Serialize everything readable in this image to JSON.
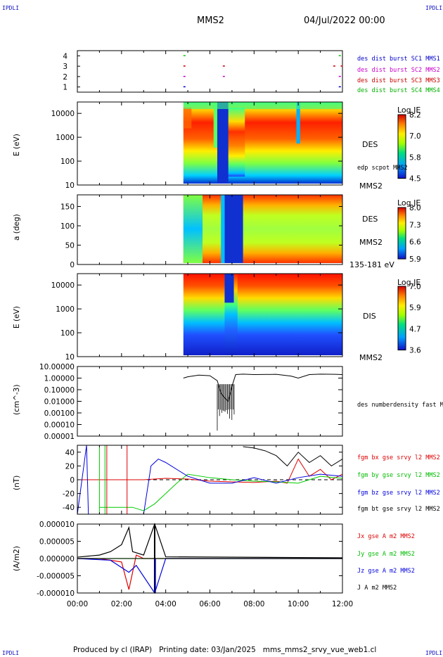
{
  "header": {
    "corner_tl": "IPDLI",
    "corner_tr": "IPDLI",
    "corner_bl": "IPDLI",
    "corner_br": "IPDLI",
    "spacecraft": "MMS2",
    "date": "04/Jul/2022 00:00"
  },
  "footer": {
    "text": "Produced by cl (IRAP)   Printing date: 03/Jan/2025   mms_mms2_srvy_vue_web1.cl"
  },
  "colors": {
    "mms1": "#0000c8",
    "mms2": "#c800c8",
    "mms3": "#c80000",
    "mms4": "#00c800",
    "bx": "#dd0000",
    "by": "#00cc00",
    "bz": "#0000dd",
    "bt": "#000000"
  },
  "chart_data": [
    {
      "type": "scatter",
      "panel": "availability",
      "ylim": [
        0.5,
        4.5
      ],
      "yticks": [
        "1",
        "2",
        "3",
        "4"
      ],
      "series": [
        {
          "name": "des dist burst SC1 MMS1",
          "y": 1,
          "x": [
            "04:48",
            "11:50"
          ]
        },
        {
          "name": "des dist burst SC2 MMS2",
          "y": 2,
          "x": [
            "04:48",
            "06:35",
            "11:50"
          ]
        },
        {
          "name": "des dist burst SC3 MMS3",
          "y": 3,
          "x": [
            "04:48",
            "06:35",
            "11:35",
            "11:55"
          ]
        },
        {
          "name": "des dist burst SC4 MMS4",
          "y": 4,
          "x": [
            "04:48",
            "11:50"
          ]
        }
      ]
    },
    {
      "type": "heatmap",
      "panel": "des-energy",
      "ylabel": "E (eV)",
      "yscale": "log",
      "yticks": [
        "10",
        "100",
        "1000",
        "10000"
      ],
      "label": "DES",
      "sublabel": "MMS2",
      "overlay": "edp scpot MMS2",
      "colorbar": {
        "title": "Log JE",
        "ticks": [
          "8.2",
          "7.0",
          "5.8",
          "4.5"
        ]
      }
    },
    {
      "type": "heatmap",
      "panel": "des-pitch",
      "ylabel": "a (deg)",
      "yticks": [
        "0",
        "50",
        "100",
        "150"
      ],
      "ylim": [
        0,
        180
      ],
      "label": "DES",
      "sublabel": "MMS2",
      "energy_range": "135-181 eV",
      "colorbar": {
        "title": "Log JE",
        "ticks": [
          "8.0",
          "7.3",
          "6.6",
          "5.9"
        ]
      }
    },
    {
      "type": "heatmap",
      "panel": "dis-energy",
      "ylabel": "E (eV)",
      "yscale": "log",
      "yticks": [
        "10",
        "100",
        "1000",
        "10000"
      ],
      "label": "DIS",
      "sublabel": "MMS2",
      "colorbar": {
        "title": "Log JE",
        "ticks": [
          "7.0",
          "5.9",
          "4.7",
          "3.6"
        ]
      }
    },
    {
      "type": "line",
      "panel": "density",
      "ylabel": "(cm^-3)",
      "yscale": "log",
      "ylim": [
        1e-05,
        10
      ],
      "yticks": [
        "0.00001",
        "0.00010",
        "0.00100",
        "0.01000",
        "0.10000",
        "1.00000",
        "10.00000"
      ],
      "series": [
        {
          "name": "des numberdensity fast M",
          "x": [
            "04:48",
            "05:00",
            "05:30",
            "06:00",
            "06:20",
            "06:30",
            "06:40",
            "06:50",
            "07:00",
            "07:10",
            "07:30",
            "08:00",
            "09:00",
            "09:40",
            "10:00",
            "10:30",
            "11:00",
            "11:40",
            "12:00"
          ],
          "y": [
            1.0,
            1.3,
            1.8,
            1.6,
            0.6,
            0.05,
            0.02,
            0.01,
            0.2,
            2.0,
            2.2,
            2.0,
            2.1,
            1.5,
            1.0,
            2.0,
            2.2,
            2.1,
            2.0
          ]
        }
      ]
    },
    {
      "type": "line",
      "panel": "magnetic-field",
      "ylabel": "(nT)",
      "ylim": [
        -50,
        50
      ],
      "yticks": [
        "-40",
        "-20",
        "0",
        "20",
        "40"
      ],
      "series": [
        {
          "name": "fgm bx gse srvy l2 MMS2",
          "x": [
            "00:00",
            "02:30",
            "03:00",
            "04:00",
            "05:00",
            "06:00",
            "07:00",
            "08:00",
            "09:00",
            "09:30",
            "10:00",
            "10:30",
            "11:00",
            "11:30",
            "12:00"
          ],
          "y": [
            0,
            0,
            0,
            2,
            1,
            -2,
            -3,
            -4,
            -2,
            -5,
            30,
            5,
            15,
            0,
            8
          ]
        },
        {
          "name": "fgm by gse srvy l2 MMS2",
          "x": [
            "01:00",
            "02:30",
            "03:00",
            "03:30",
            "04:00",
            "04:30",
            "05:00",
            "06:00",
            "07:00",
            "08:00",
            "09:00",
            "10:00",
            "11:00",
            "12:00"
          ],
          "y": [
            -40,
            -40,
            -45,
            -35,
            -20,
            -5,
            8,
            3,
            0,
            -2,
            -3,
            -5,
            5,
            2
          ]
        },
        {
          "name": "fgm bz gse srvy l2 MMS2",
          "x": [
            "00:00",
            "00:25",
            "00:30",
            "03:00",
            "03:20",
            "03:40",
            "04:00",
            "05:00",
            "06:00",
            "07:00",
            "08:00",
            "09:00",
            "10:00",
            "11:00",
            "12:00"
          ],
          "y": [
            -50,
            50,
            -50,
            -50,
            20,
            30,
            25,
            5,
            -5,
            -5,
            3,
            -5,
            3,
            8,
            5
          ]
        },
        {
          "name": "fgm bt gse srvy l2 MMS2",
          "x": [
            "07:30",
            "08:00",
            "08:30",
            "09:00",
            "09:30",
            "10:00",
            "10:30",
            "11:00",
            "11:30",
            "12:00"
          ],
          "y": [
            48,
            46,
            42,
            35,
            20,
            40,
            25,
            35,
            20,
            30
          ]
        }
      ]
    },
    {
      "type": "line",
      "panel": "current",
      "ylabel": "(A/m2)",
      "ylim": [
        -1e-05,
        1e-05
      ],
      "yticks": [
        "-0.000010",
        "-0.000005",
        "0.000000",
        "0.000005",
        "0.000010"
      ],
      "series": [
        {
          "name": "Jx gse A m2 MMS2",
          "x": [
            "00:00",
            "01:00",
            "02:00",
            "02:20",
            "02:40",
            "03:00",
            "04:00",
            "12:00"
          ],
          "y": [
            0,
            0,
            -1e-06,
            -9e-06,
            1e-06,
            0,
            0,
            0
          ]
        },
        {
          "name": "Jy gse A m2 MMS2",
          "x": [
            "00:00",
            "12:00"
          ],
          "y": [
            0,
            0
          ]
        },
        {
          "name": "Jz gse A m2 MMS2",
          "x": [
            "00:00",
            "01:30",
            "02:20",
            "02:40",
            "03:30",
            "04:00",
            "12:00"
          ],
          "y": [
            0,
            -5e-07,
            -4e-06,
            -2e-06,
            -1e-05,
            0,
            0
          ]
        },
        {
          "name": "J A m2 MMS2",
          "x": [
            "00:00",
            "01:00",
            "01:30",
            "02:00",
            "02:20",
            "02:30",
            "03:00",
            "03:30",
            "04:00",
            "12:00"
          ],
          "y": [
            4e-07,
            1e-06,
            2e-06,
            4e-06,
            9e-06,
            2e-06,
            1e-06,
            1e-05,
            5e-07,
            2e-07
          ]
        }
      ]
    }
  ],
  "xaxis": {
    "ticks": [
      "00:00",
      "02:00",
      "04:00",
      "06:00",
      "08:00",
      "10:00",
      "12:00"
    ]
  }
}
